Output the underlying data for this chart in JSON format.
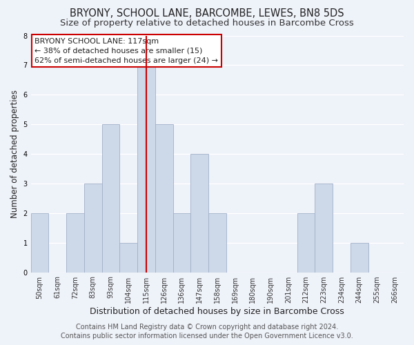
{
  "title": "BRYONY, SCHOOL LANE, BARCOMBE, LEWES, BN8 5DS",
  "subtitle": "Size of property relative to detached houses in Barcombe Cross",
  "xlabel": "Distribution of detached houses by size in Barcombe Cross",
  "ylabel": "Number of detached properties",
  "footer_line1": "Contains HM Land Registry data © Crown copyright and database right 2024.",
  "footer_line2": "Contains public sector information licensed under the Open Government Licence v3.0.",
  "bin_labels": [
    "50sqm",
    "61sqm",
    "72sqm",
    "83sqm",
    "93sqm",
    "104sqm",
    "115sqm",
    "126sqm",
    "136sqm",
    "147sqm",
    "158sqm",
    "169sqm",
    "180sqm",
    "190sqm",
    "201sqm",
    "212sqm",
    "223sqm",
    "234sqm",
    "244sqm",
    "255sqm",
    "266sqm"
  ],
  "bar_heights": [
    2,
    0,
    2,
    3,
    5,
    1,
    7,
    5,
    2,
    4,
    2,
    0,
    0,
    0,
    0,
    2,
    3,
    0,
    1,
    0,
    0
  ],
  "bar_color": "#cdd8e8",
  "bar_edge_color": "#a0b0c8",
  "highlight_index": 6,
  "highlight_line_color": "#cc0000",
  "ylim": [
    0,
    8
  ],
  "yticks": [
    0,
    1,
    2,
    3,
    4,
    5,
    6,
    7,
    8
  ],
  "annotation_title": "BRYONY SCHOOL LANE: 117sqm",
  "annotation_line1": "← 38% of detached houses are smaller (15)",
  "annotation_line2": "62% of semi-detached houses are larger (24) →",
  "annotation_box_edge": "#cc0000",
  "background_color": "#eef2f9",
  "grid_color": "#ffffff",
  "title_fontsize": 10.5,
  "subtitle_fontsize": 9.5,
  "xlabel_fontsize": 9,
  "ylabel_fontsize": 8.5,
  "tick_fontsize": 7,
  "annotation_fontsize": 8,
  "footer_fontsize": 7
}
